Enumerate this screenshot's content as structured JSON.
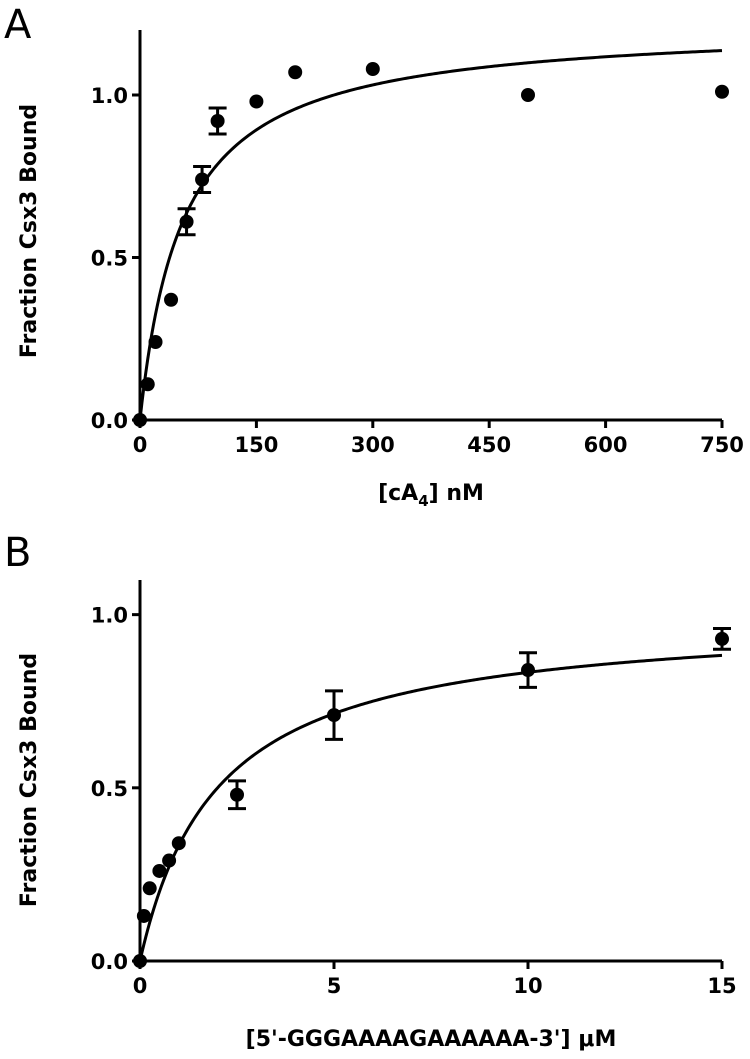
{
  "chart_data": [
    {
      "type": "scatter",
      "panel_label": "A",
      "xlabel_pre": "[cA",
      "xlabel_sub": "4",
      "xlabel_post": "] nM",
      "ylabel": "Fraction Csx3 Bound",
      "xlim": [
        0,
        750
      ],
      "ylim": [
        0,
        1.2
      ],
      "xticks": [
        0,
        150,
        300,
        450,
        600,
        750
      ],
      "yticks": [
        0.0,
        0.5,
        1.0
      ],
      "xtick_labels": [
        "0",
        "150",
        "300",
        "450",
        "600",
        "750"
      ],
      "ytick_labels": [
        "0.0",
        "0.5",
        "1.0"
      ],
      "points": [
        {
          "x": 0,
          "y": 0.0,
          "err": 0
        },
        {
          "x": 10,
          "y": 0.11,
          "err": 0
        },
        {
          "x": 20,
          "y": 0.24,
          "err": 0
        },
        {
          "x": 40,
          "y": 0.37,
          "err": 0
        },
        {
          "x": 60,
          "y": 0.61,
          "err": 0.04
        },
        {
          "x": 80,
          "y": 0.74,
          "err": 0.04
        },
        {
          "x": 100,
          "y": 0.92,
          "err": 0.04
        },
        {
          "x": 150,
          "y": 0.98,
          "err": 0
        },
        {
          "x": 200,
          "y": 1.07,
          "err": 0
        },
        {
          "x": 300,
          "y": 1.08,
          "err": 0
        },
        {
          "x": 500,
          "y": 1.0,
          "err": 0
        },
        {
          "x": 750,
          "y": 1.01,
          "err": 0
        }
      ],
      "fit": {
        "model": "hyperbolic",
        "bmax": 1.22,
        "kd": 55
      }
    },
    {
      "type": "scatter",
      "panel_label": "B",
      "xlabel": "[5'-GGGAAAAGAAAAAA-3'] μM",
      "ylabel": "Fraction Csx3 Bound",
      "xlim": [
        0,
        15
      ],
      "ylim": [
        0,
        1.1
      ],
      "xticks": [
        0,
        5,
        10,
        15
      ],
      "yticks": [
        0.0,
        0.5,
        1.0
      ],
      "xtick_labels": [
        "0",
        "5",
        "10",
        "15"
      ],
      "ytick_labels": [
        "0.0",
        "0.5",
        "1.0"
      ],
      "points": [
        {
          "x": 0,
          "y": 0.0,
          "err": 0
        },
        {
          "x": 0.1,
          "y": 0.13,
          "err": 0
        },
        {
          "x": 0.25,
          "y": 0.21,
          "err": 0
        },
        {
          "x": 0.5,
          "y": 0.26,
          "err": 0
        },
        {
          "x": 0.75,
          "y": 0.29,
          "err": 0
        },
        {
          "x": 1.0,
          "y": 0.34,
          "err": 0
        },
        {
          "x": 2.5,
          "y": 0.48,
          "err": 0.04
        },
        {
          "x": 5,
          "y": 0.71,
          "err": 0.07
        },
        {
          "x": 10,
          "y": 0.84,
          "err": 0.05
        },
        {
          "x": 15,
          "y": 0.93,
          "err": 0.03
        }
      ],
      "fit": {
        "model": "hyperbolic",
        "bmax": 1.0,
        "kd": 2.0
      }
    }
  ]
}
